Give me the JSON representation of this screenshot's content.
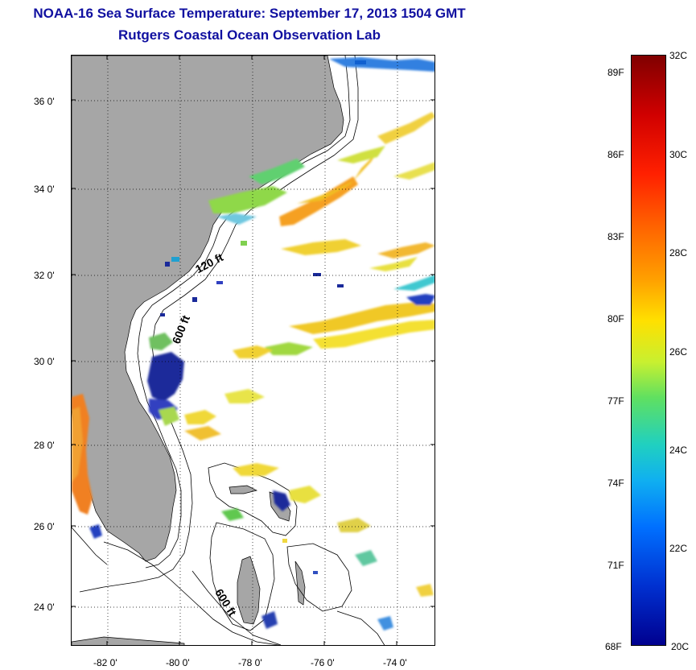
{
  "title": {
    "line1": "NOAA-16 Sea Surface Temperature:  September 17, 2013 1504 GMT",
    "line2": "Rutgers Coastal Ocean Observation Lab"
  },
  "map": {
    "lat_labels": [
      "36 0'",
      "34 0'",
      "32 0'",
      "30 0'",
      "28 0'",
      "26 0'",
      "24 0'"
    ],
    "lon_labels": [
      "-82 0'",
      "-80 0'",
      "-78 0'",
      "-76 0'",
      "-74 0'"
    ],
    "contour_labels": [
      "120 ft",
      "600 ft",
      "600 ft"
    ],
    "land_color": "#a6a6a6",
    "grid": true
  },
  "colorbar": {
    "top_color": "#800000",
    "bottom_color": "#00008f",
    "celsius_labels": [
      "32C",
      "30C",
      "28C",
      "26C",
      "24C",
      "22C",
      "20C"
    ],
    "fahrenheit_labels": [
      "89F",
      "86F",
      "83F",
      "80F",
      "77F",
      "74F",
      "71F",
      "68F"
    ]
  }
}
